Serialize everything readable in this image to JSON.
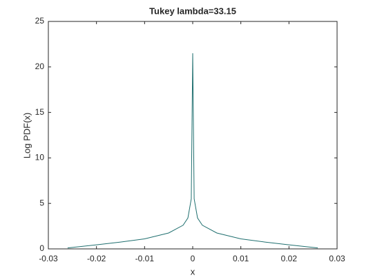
{
  "chart_data": {
    "type": "line",
    "title": "Tukey lambda=33.15",
    "xlabel": "x",
    "ylabel": "Log PDF(x)",
    "x": [
      -0.026,
      -0.02,
      -0.015,
      -0.01,
      -0.005,
      -0.002,
      -0.001,
      -0.0003,
      0,
      0.0003,
      0.001,
      0.002,
      0.005,
      0.01,
      0.015,
      0.02,
      0.026
    ],
    "series": [
      {
        "color": "#1f6f6f",
        "values": [
          0.1,
          0.45,
          0.75,
          1.1,
          1.75,
          2.6,
          3.4,
          5.5,
          21.5,
          5.5,
          3.4,
          2.6,
          1.75,
          1.1,
          0.75,
          0.45,
          0.1
        ]
      }
    ],
    "xlim": [
      -0.03,
      0.03
    ],
    "xticks": [
      -0.03,
      -0.02,
      -0.01,
      0,
      0.01,
      0.02,
      0.03
    ],
    "ylim": [
      0,
      25
    ],
    "yticks": [
      0,
      5,
      10,
      15,
      20,
      25
    ]
  }
}
